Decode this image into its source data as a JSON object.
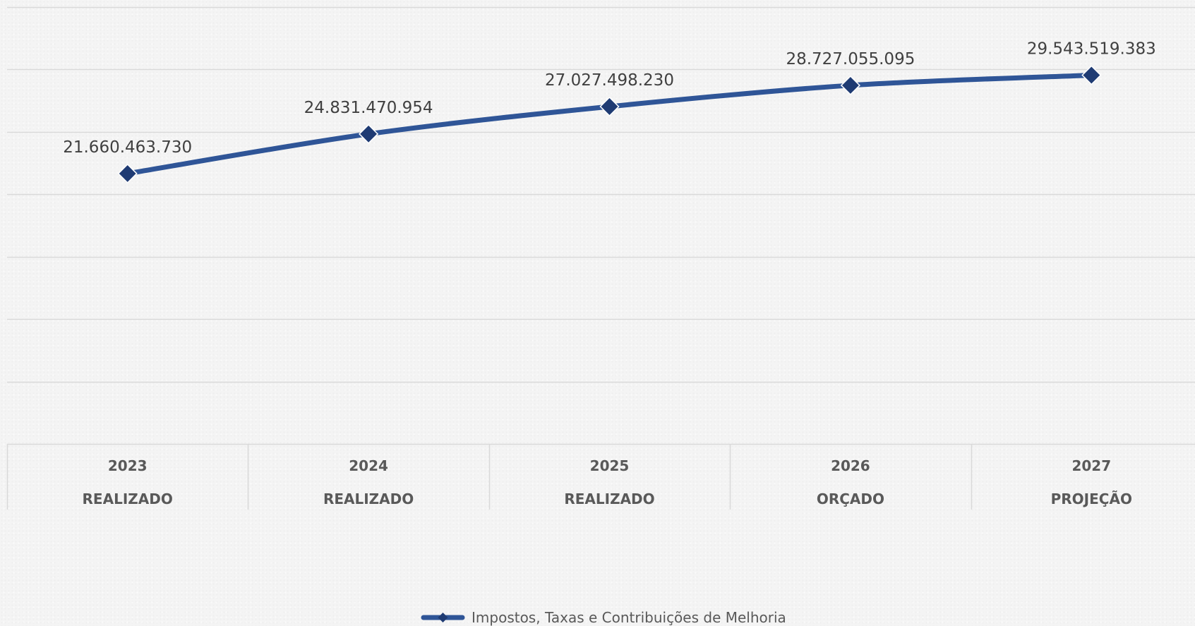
{
  "chart_data": {
    "type": "line",
    "categories": [
      {
        "year": "2023",
        "status": "REALIZADO"
      },
      {
        "year": "2024",
        "status": "REALIZADO"
      },
      {
        "year": "2025",
        "status": "REALIZADO"
      },
      {
        "year": "2026",
        "status": "ORÇADO"
      },
      {
        "year": "2027",
        "status": "PROJEÇÃO"
      }
    ],
    "series": [
      {
        "name": "Impostos, Taxas e Contribuições de Melhoria",
        "values": [
          21660463730,
          24831470954,
          27027498230,
          28727055095,
          29543519383
        ],
        "labels": [
          "21.660.463.730",
          "24.831.470.954",
          "27.027.498.230",
          "28.727.055.095",
          "29.543.519.383"
        ]
      }
    ],
    "ylim": [
      0,
      35000000000
    ],
    "grid": true,
    "legend": "bottom-center",
    "colors": {
      "line": "#2f5597",
      "marker": "#1f3b73",
      "grid": "#d9d9d9",
      "text": "#404040"
    }
  }
}
